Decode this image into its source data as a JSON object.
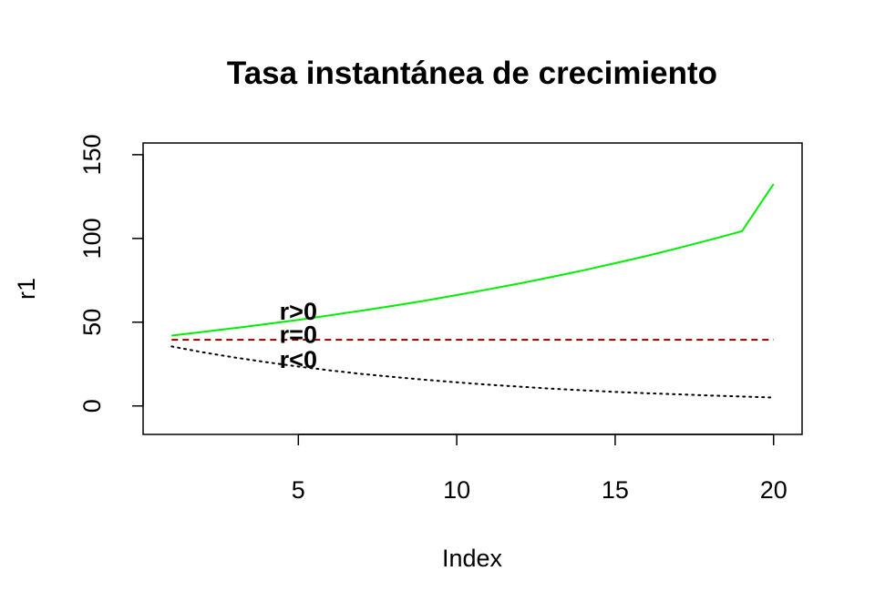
{
  "chart_data": {
    "type": "line",
    "title": "Tasa instantánea de crecimiento",
    "xlabel": "Index",
    "ylabel": "r1",
    "xlim": [
      0.1,
      20.9
    ],
    "ylim": [
      -17,
      157
    ],
    "x_ticks": [
      5,
      10,
      15,
      20
    ],
    "y_ticks": [
      0,
      50,
      100,
      150
    ],
    "grid": false,
    "x": [
      1,
      2,
      3,
      4,
      5,
      6,
      7,
      8,
      9,
      10,
      11,
      12,
      13,
      14,
      15,
      16,
      17,
      18,
      19,
      20
    ],
    "series": [
      {
        "color": "#00ee00",
        "line_style": "solid",
        "values": [
          42.0,
          44.2,
          46.5,
          48.9,
          51.4,
          54.1,
          56.9,
          59.8,
          62.9,
          66.2,
          69.6,
          73.2,
          77.0,
          81.0,
          85.2,
          89.6,
          94.3,
          99.2,
          104.3,
          132.5
        ]
      },
      {
        "color": "#8b0000",
        "line_style": "dashed",
        "values": [
          39.5,
          39.5,
          39.5,
          39.5,
          39.5,
          39.5,
          39.5,
          39.5,
          39.5,
          39.5,
          39.5,
          39.5,
          39.5,
          39.5,
          39.5,
          39.5,
          39.5,
          39.5,
          39.5,
          39.5
        ]
      },
      {
        "color": "#000000",
        "line_style": "dotted",
        "values": [
          35.5,
          32.0,
          28.9,
          26.1,
          23.5,
          21.2,
          19.1,
          17.3,
          15.6,
          14.1,
          12.7,
          11.5,
          10.3,
          9.3,
          8.4,
          7.6,
          6.9,
          6.2,
          5.6,
          5.0
        ]
      }
    ],
    "annotations": [
      {
        "text": "r>0",
        "x": 5,
        "y": 57
      },
      {
        "text": "r=0",
        "x": 5,
        "y": 43
      },
      {
        "text": "r<0",
        "x": 5,
        "y": 28
      }
    ]
  }
}
